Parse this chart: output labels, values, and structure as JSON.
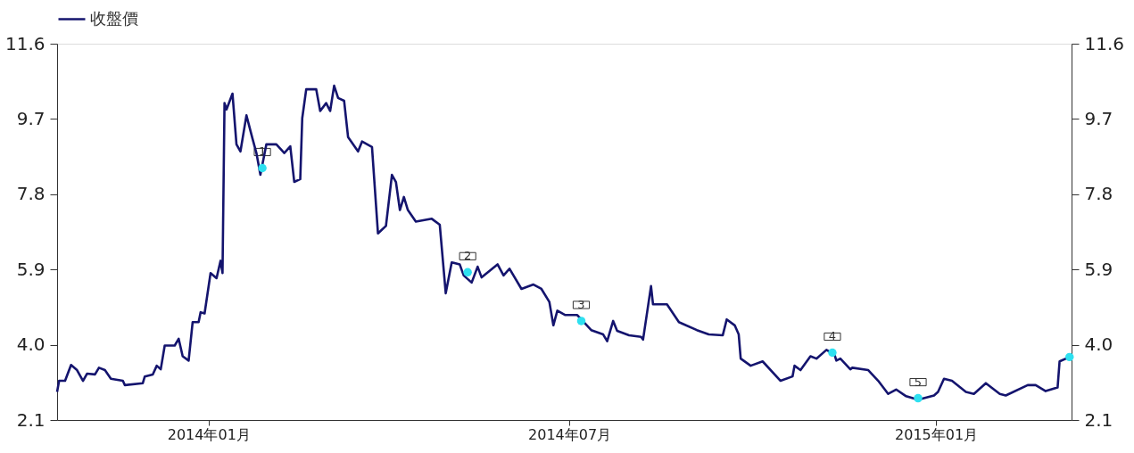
{
  "chart_data": {
    "type": "line",
    "x": [
      "2013-10-17",
      "2013-10-18",
      "2013-10-21",
      "2013-10-24",
      "2013-10-27",
      "2013-10-30",
      "2013-11-01",
      "2013-11-05",
      "2013-11-07",
      "2013-11-10",
      "2013-11-13",
      "2013-11-19",
      "2013-11-20",
      "2013-11-29",
      "2013-11-30",
      "2013-12-04",
      "2013-12-06",
      "2013-12-08",
      "2013-12-10",
      "2013-12-15",
      "2013-12-17",
      "2013-12-19",
      "2013-12-22",
      "2013-12-24",
      "2013-12-27",
      "2013-12-28",
      "2013-12-30",
      "2014-01-02",
      "2014-01-05",
      "2014-01-07",
      "2014-01-08",
      "2014-01-09",
      "2014-01-10",
      "2014-01-13",
      "2014-01-15",
      "2014-01-17",
      "2014-01-20",
      "2014-01-23",
      "2014-01-25",
      "2014-01-27",
      "2014-01-30",
      "2014-02-04",
      "2014-02-08",
      "2014-02-11",
      "2014-02-13",
      "2014-02-16",
      "2014-02-17",
      "2014-02-19",
      "2014-02-24",
      "2014-02-26",
      "2014-03-01",
      "2014-03-03",
      "2014-03-05",
      "2014-03-07",
      "2014-03-10",
      "2014-03-12",
      "2014-03-17",
      "2014-03-19",
      "2014-03-24",
      "2014-03-27",
      "2014-03-31",
      "2014-04-03",
      "2014-04-05",
      "2014-04-07",
      "2014-04-09",
      "2014-04-11",
      "2014-04-15",
      "2014-04-23",
      "2014-04-27",
      "2014-04-30",
      "2014-05-03",
      "2014-05-07",
      "2014-05-09",
      "2014-05-13",
      "2014-05-16",
      "2014-05-18",
      "2014-05-26",
      "2014-05-29",
      "2014-06-01",
      "2014-06-07",
      "2014-06-13",
      "2014-06-17",
      "2014-06-21",
      "2014-06-23",
      "2014-06-25",
      "2014-06-29",
      "2014-07-05",
      "2014-07-12",
      "2014-07-18",
      "2014-07-20",
      "2014-07-23",
      "2014-07-25",
      "2014-07-31",
      "2014-08-06",
      "2014-08-07",
      "2014-08-11",
      "2014-08-12",
      "2014-08-19",
      "2014-08-25",
      "2014-09-03",
      "2014-09-09",
      "2014-09-16",
      "2014-09-18",
      "2014-09-22",
      "2014-09-24",
      "2014-09-25",
      "2014-09-30",
      "2014-10-06",
      "2014-10-15",
      "2014-10-21",
      "2014-10-22",
      "2014-10-25",
      "2014-10-30",
      "2014-11-02",
      "2014-11-07",
      "2014-11-11",
      "2014-11-12",
      "2014-11-14",
      "2014-11-19",
      "2014-11-20",
      "2014-11-28",
      "2014-12-03",
      "2014-12-08",
      "2014-12-12",
      "2014-12-17",
      "2014-12-23",
      "2014-12-31",
      "2015-01-02",
      "2015-01-05",
      "2015-01-09",
      "2015-01-16",
      "2015-01-20",
      "2015-01-26",
      "2015-02-02",
      "2015-02-05",
      "2015-02-16",
      "2015-02-20",
      "2015-02-25",
      "2015-03-03",
      "2015-03-04",
      "2015-03-09"
    ],
    "series": [
      {
        "name": "收盤價",
        "color": "#14146e",
        "values": [
          2.81,
          3.09,
          3.09,
          3.49,
          3.36,
          3.09,
          3.27,
          3.25,
          3.42,
          3.36,
          3.14,
          3.09,
          2.98,
          3.03,
          3.2,
          3.25,
          3.47,
          3.38,
          3.98,
          3.98,
          4.15,
          3.71,
          3.6,
          4.57,
          4.57,
          4.82,
          4.79,
          5.81,
          5.68,
          6.12,
          5.81,
          10.1,
          9.94,
          10.34,
          9.06,
          8.88,
          9.79,
          9.21,
          8.84,
          8.29,
          9.06,
          9.06,
          8.84,
          9.01,
          8.11,
          8.18,
          9.72,
          10.45,
          10.45,
          9.9,
          10.1,
          9.9,
          10.54,
          10.23,
          10.16,
          9.24,
          8.88,
          9.13,
          8.99,
          6.81,
          7.0,
          8.29,
          8.11,
          7.4,
          7.73,
          7.4,
          7.11,
          7.18,
          7.03,
          5.3,
          6.08,
          6.03,
          5.75,
          5.57,
          5.97,
          5.7,
          6.03,
          5.75,
          5.92,
          5.41,
          5.52,
          5.41,
          5.08,
          4.49,
          4.86,
          4.75,
          4.75,
          4.37,
          4.26,
          4.09,
          4.6,
          4.35,
          4.24,
          4.2,
          4.13,
          5.48,
          5.02,
          5.02,
          4.57,
          4.37,
          4.26,
          4.24,
          4.64,
          4.49,
          4.26,
          3.65,
          3.47,
          3.58,
          3.09,
          3.2,
          3.47,
          3.36,
          3.71,
          3.65,
          3.87,
          3.76,
          3.6,
          3.65,
          3.38,
          3.42,
          3.36,
          3.09,
          2.76,
          2.87,
          2.7,
          2.61,
          2.72,
          2.81,
          3.14,
          3.09,
          2.81,
          2.76,
          3.03,
          2.76,
          2.72,
          2.98,
          2.98,
          2.83,
          2.92,
          3.58,
          3.69
        ]
      },
      {
        "type": "scatter",
        "color": "#2ee0f0",
        "marker": "circle",
        "x": [
          "2014-01-28",
          "2014-05-11",
          "2014-07-07",
          "2014-11-10",
          "2014-12-23",
          "2015-03-09"
        ],
        "values": [
          8.46,
          5.83,
          4.6,
          3.8,
          2.65,
          3.69
        ]
      }
    ],
    "annotations": [
      {
        "text": "1",
        "x": "2014-01-28",
        "y": 8.46
      },
      {
        "text": "2",
        "x": "2014-05-11",
        "y": 5.83
      },
      {
        "text": "3",
        "x": "2014-07-07",
        "y": 4.6
      },
      {
        "text": "4",
        "x": "2014-11-10",
        "y": 3.8
      },
      {
        "text": "5",
        "x": "2014-12-23",
        "y": 2.65
      }
    ],
    "xlim": [
      "2013-10-17",
      "2015-03-10"
    ],
    "xticks": [
      {
        "value": "2014-01-01",
        "label": "2014年01月"
      },
      {
        "value": "2014-07-01",
        "label": "2014年07月"
      },
      {
        "value": "2015-01-01",
        "label": "2015年01月"
      }
    ],
    "ylim": [
      2.1,
      11.6
    ],
    "yticks": [
      2.1,
      {
        "value": 4,
        "label": "4.0"
      },
      5.9,
      7.8,
      9.7,
      11.6
    ],
    "y2lim": [
      2.1,
      11.6
    ],
    "y2ticks": [
      2.1,
      {
        "value": 4,
        "label": "4.0"
      },
      5.9,
      7.8,
      9.7,
      11.6
    ],
    "grid": false,
    "legend": "top",
    "line_style": "solid"
  }
}
